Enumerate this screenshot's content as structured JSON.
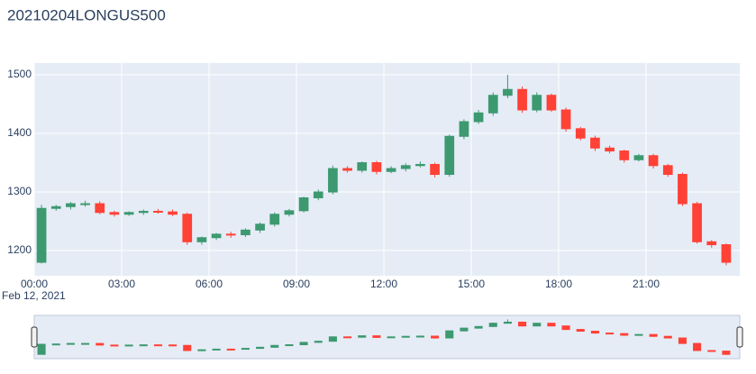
{
  "chart_data": {
    "type": "candlestick",
    "title": "20210204LONGUS500",
    "x": [
      "2021-02-12 00:00",
      "2021-02-12 00:30",
      "2021-02-12 01:00",
      "2021-02-12 01:30",
      "2021-02-12 02:00",
      "2021-02-12 02:30",
      "2021-02-12 03:00",
      "2021-02-12 03:30",
      "2021-02-12 04:00",
      "2021-02-12 04:30",
      "2021-02-12 05:00",
      "2021-02-12 05:30",
      "2021-02-12 06:00",
      "2021-02-12 06:30",
      "2021-02-12 07:00",
      "2021-02-12 07:30",
      "2021-02-12 08:00",
      "2021-02-12 08:30",
      "2021-02-12 09:00",
      "2021-02-12 09:30",
      "2021-02-12 10:00",
      "2021-02-12 10:30",
      "2021-02-12 11:00",
      "2021-02-12 11:30",
      "2021-02-12 12:00",
      "2021-02-12 12:30",
      "2021-02-12 13:00",
      "2021-02-12 13:30",
      "2021-02-12 14:00",
      "2021-02-12 14:30",
      "2021-02-12 15:00",
      "2021-02-12 15:30",
      "2021-02-12 16:00",
      "2021-02-12 16:30",
      "2021-02-12 17:00",
      "2021-02-12 17:30",
      "2021-02-12 18:00",
      "2021-02-12 18:30",
      "2021-02-12 19:00",
      "2021-02-12 19:30",
      "2021-02-12 20:00",
      "2021-02-12 20:30",
      "2021-02-12 21:00",
      "2021-02-12 21:30",
      "2021-02-12 22:00",
      "2021-02-12 22:30",
      "2021-02-12 23:00",
      "2021-02-12 23:30"
    ],
    "open": [
      1180,
      1272,
      1275,
      1280,
      1280,
      1265,
      1262,
      1265,
      1267,
      1266,
      1262,
      1215,
      1222,
      1228,
      1227,
      1235,
      1245,
      1262,
      1268,
      1290,
      1300,
      1340,
      1337,
      1350,
      1335,
      1340,
      1345,
      1347,
      1330,
      1395,
      1420,
      1435,
      1465,
      1475,
      1440,
      1465,
      1440,
      1408,
      1392,
      1375,
      1370,
      1355,
      1362,
      1345,
      1330,
      1280,
      1215,
      1210
    ],
    "high": [
      1278,
      1278,
      1283,
      1285,
      1284,
      1268,
      1267,
      1270,
      1271,
      1270,
      1265,
      1224,
      1230,
      1232,
      1238,
      1248,
      1265,
      1271,
      1292,
      1304,
      1345,
      1344,
      1352,
      1353,
      1344,
      1349,
      1352,
      1350,
      1398,
      1424,
      1440,
      1470,
      1500,
      1480,
      1470,
      1468,
      1444,
      1411,
      1396,
      1379,
      1372,
      1365,
      1365,
      1348,
      1333,
      1283,
      1218,
      1212
    ],
    "low": [
      1178,
      1268,
      1270,
      1275,
      1262,
      1258,
      1259,
      1261,
      1263,
      1259,
      1210,
      1210,
      1218,
      1222,
      1223,
      1230,
      1241,
      1258,
      1265,
      1286,
      1296,
      1333,
      1333,
      1330,
      1332,
      1335,
      1342,
      1325,
      1326,
      1390,
      1416,
      1430,
      1460,
      1435,
      1436,
      1437,
      1403,
      1388,
      1370,
      1366,
      1350,
      1352,
      1340,
      1326,
      1276,
      1212,
      1205,
      1175
    ],
    "close": [
      1272,
      1275,
      1280,
      1280,
      1265,
      1262,
      1265,
      1267,
      1266,
      1262,
      1215,
      1222,
      1228,
      1227,
      1235,
      1245,
      1262,
      1268,
      1290,
      1300,
      1340,
      1337,
      1350,
      1335,
      1340,
      1345,
      1347,
      1330,
      1395,
      1420,
      1435,
      1465,
      1475,
      1440,
      1465,
      1440,
      1408,
      1392,
      1375,
      1370,
      1355,
      1362,
      1345,
      1330,
      1280,
      1215,
      1210,
      1180
    ],
    "increasing_color": "#3d9970",
    "decreasing_color": "#ff4136",
    "xlim": [
      "2021-02-12 00:00",
      "2021-02-13 00:13"
    ],
    "xticks": [
      {
        "value": "2021-02-12 00:00",
        "label": "00:00"
      },
      {
        "value": "2021-02-12 03:00",
        "label": "03:00"
      },
      {
        "value": "2021-02-12 06:00",
        "label": "06:00"
      },
      {
        "value": "2021-02-12 09:00",
        "label": "09:00"
      },
      {
        "value": "2021-02-12 12:00",
        "label": "12:00"
      },
      {
        "value": "2021-02-12 15:00",
        "label": "15:00"
      },
      {
        "value": "2021-02-12 18:00",
        "label": "18:00"
      },
      {
        "value": "2021-02-12 21:00",
        "label": "21:00"
      }
    ],
    "x_date_label": "Feb 12, 2021",
    "ylim": [
      1157,
      1520
    ],
    "yticks": [
      1200,
      1300,
      1400,
      1500
    ],
    "grid": true,
    "rangeslider": true
  }
}
